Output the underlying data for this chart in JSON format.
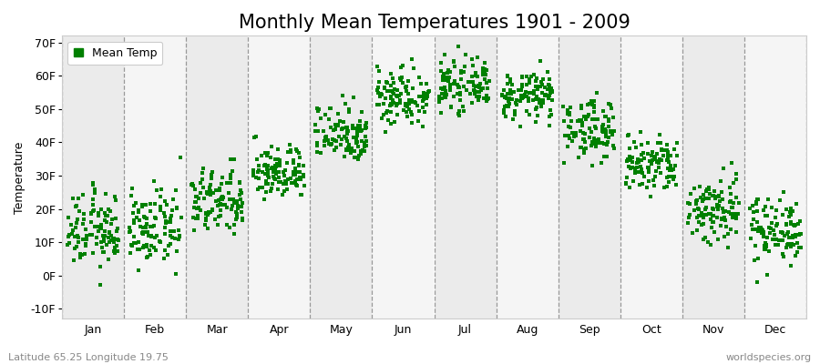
{
  "title": "Monthly Mean Temperatures 1901 - 2009",
  "ylabel": "Temperature",
  "xlabel_labels": [
    "Jan",
    "Feb",
    "Mar",
    "Apr",
    "May",
    "Jun",
    "Jul",
    "Aug",
    "Sep",
    "Oct",
    "Nov",
    "Dec"
  ],
  "yticks": [
    -10,
    0,
    10,
    20,
    30,
    40,
    50,
    60,
    70
  ],
  "ytick_labels": [
    "-10F",
    "0F",
    "10F",
    "20F",
    "30F",
    "40F",
    "50F",
    "60F",
    "70F"
  ],
  "ylim": [
    -13,
    72
  ],
  "xlim": [
    0,
    12
  ],
  "dot_color": "#008000",
  "dot_size": 5,
  "background_color": "#FFFFFF",
  "band_color_odd": "#EBEBEB",
  "band_color_even": "#F5F5F5",
  "legend_label": "Mean Temp",
  "footer_left": "Latitude 65.25 Longitude 19.75",
  "footer_right": "worldspecies.org",
  "title_fontsize": 15,
  "axis_label_fontsize": 9,
  "tick_fontsize": 9,
  "footer_fontsize": 8,
  "monthly_means": [
    13.5,
    14.0,
    22.0,
    31.0,
    43.0,
    54.0,
    57.0,
    54.0,
    44.0,
    33.0,
    20.0,
    14.0
  ],
  "monthly_stds": [
    5.5,
    5.5,
    5.0,
    4.0,
    4.5,
    4.5,
    3.5,
    3.5,
    4.5,
    4.5,
    5.5,
    5.0
  ],
  "num_years": 109
}
